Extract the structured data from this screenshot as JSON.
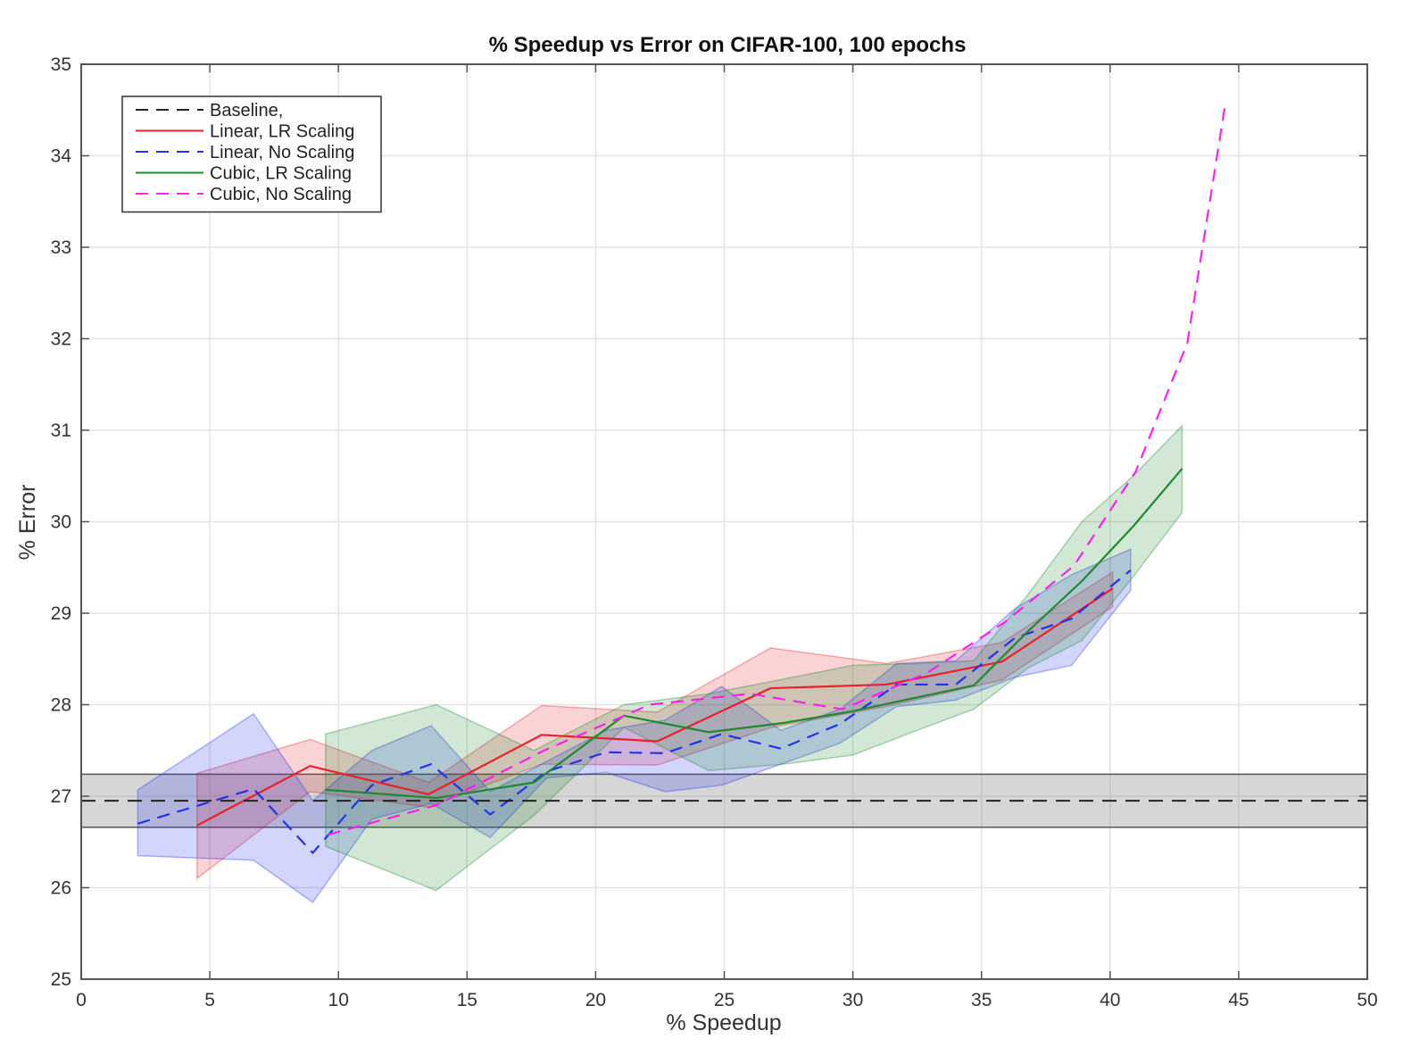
{
  "chart_data": {
    "type": "line",
    "title": "% Speedup vs Error on CIFAR-100, 100 epochs",
    "xlabel": "% Speedup",
    "ylabel": "% Error",
    "xlim": [
      0,
      50
    ],
    "ylim": [
      25,
      35
    ],
    "xticks": [
      0,
      5,
      10,
      15,
      20,
      25,
      30,
      35,
      40,
      45,
      50
    ],
    "yticks": [
      25,
      26,
      27,
      28,
      29,
      30,
      31,
      32,
      33,
      34,
      35
    ],
    "grid": true,
    "legend_position": "top-left",
    "baseline": {
      "name": "Baseline,",
      "value": 26.95,
      "band": [
        26.66,
        27.24
      ],
      "color": "#222222",
      "band_color": "#8a8a8a"
    },
    "series": [
      {
        "name": "Linear, LR Scaling",
        "color": "#e8212b",
        "dash": false,
        "x": [
          4.5,
          8.9,
          13.5,
          17.9,
          22.4,
          26.8,
          31.3,
          35.8,
          40.1
        ],
        "y": [
          26.68,
          27.33,
          27.02,
          27.67,
          27.6,
          28.18,
          28.22,
          28.47,
          29.27
        ],
        "upper": [
          27.25,
          27.62,
          27.15,
          27.99,
          27.92,
          28.62,
          28.45,
          28.68,
          29.45
        ],
        "lower": [
          26.1,
          27.05,
          26.88,
          27.35,
          27.34,
          27.75,
          27.98,
          28.27,
          29.07
        ]
      },
      {
        "name": "Linear, No Scaling",
        "color": "#2233ee",
        "dash": true,
        "x": [
          2.2,
          6.7,
          9.0,
          11.3,
          13.6,
          15.9,
          18.1,
          20.4,
          22.7,
          24.9,
          27.2,
          29.5,
          31.7,
          34.0,
          36.3,
          38.5,
          40.8
        ],
        "y": [
          26.7,
          27.08,
          26.38,
          27.12,
          27.35,
          26.8,
          27.27,
          27.48,
          27.47,
          27.68,
          27.52,
          27.79,
          28.22,
          28.22,
          28.73,
          28.94,
          29.47
        ],
        "upper": [
          27.07,
          27.9,
          26.95,
          27.5,
          27.77,
          27.05,
          27.38,
          27.72,
          27.83,
          28.2,
          27.72,
          27.95,
          28.45,
          28.48,
          29.05,
          29.42,
          29.7
        ],
        "lower": [
          26.35,
          26.3,
          25.84,
          26.75,
          26.92,
          26.55,
          27.2,
          27.26,
          27.05,
          27.12,
          27.35,
          27.58,
          27.98,
          28.05,
          28.3,
          28.43,
          29.25
        ]
      },
      {
        "name": "Cubic, LR Scaling",
        "color": "#1e8a2e",
        "dash": false,
        "x": [
          9.5,
          13.8,
          17.6,
          21.1,
          24.4,
          27.3,
          30.0,
          32.5,
          34.7,
          36.8,
          38.9,
          40.9,
          42.8
        ],
        "y": [
          27.07,
          26.98,
          27.15,
          27.88,
          27.7,
          27.8,
          27.93,
          28.08,
          28.21,
          28.8,
          29.35,
          29.95,
          30.58
        ],
        "upper": [
          27.68,
          28.0,
          27.5,
          28.0,
          28.12,
          28.28,
          28.43,
          28.45,
          28.48,
          29.2,
          30.0,
          30.5,
          31.05
        ],
        "lower": [
          26.45,
          25.97,
          26.79,
          27.75,
          27.28,
          27.35,
          27.45,
          27.72,
          27.95,
          28.4,
          28.7,
          29.4,
          30.1
        ]
      },
      {
        "name": "Cubic, No Scaling",
        "color": "#ff22ee",
        "dash": true,
        "x": [
          9.6,
          13.8,
          18.0,
          22.1,
          26.0,
          29.6,
          32.9,
          35.9,
          38.6,
          41.0,
          43.0,
          44.5
        ],
        "y": [
          26.58,
          26.9,
          27.5,
          28.0,
          28.12,
          27.95,
          28.35,
          28.9,
          29.52,
          30.55,
          31.95,
          34.6
        ],
        "upper": [],
        "lower": []
      }
    ]
  }
}
